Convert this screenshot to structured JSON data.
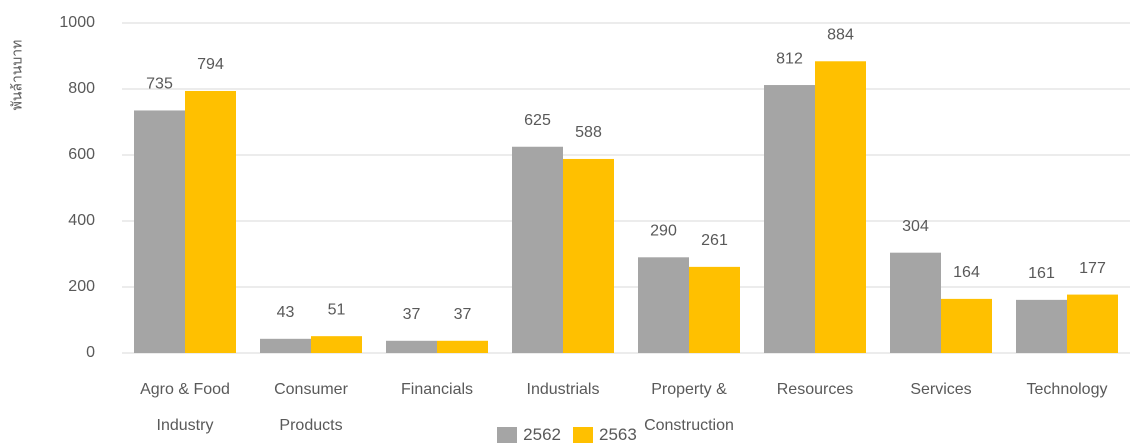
{
  "chart_data": {
    "type": "bar",
    "y_label": "พันล้านบาท",
    "categories": [
      "Agro & Food Industry",
      "Consumer Products",
      "Financials",
      "Industrials",
      "Property & Construction",
      "Resources",
      "Services",
      "Technology"
    ],
    "series": [
      {
        "name": "2562",
        "color": "#a5a5a5",
        "values": [
          735,
          43,
          37,
          625,
          290,
          812,
          304,
          161
        ]
      },
      {
        "name": "2563",
        "color": "#ffc000",
        "values": [
          794,
          51,
          37,
          588,
          261,
          884,
          164,
          177
        ]
      }
    ],
    "ylim": [
      0,
      1000
    ],
    "yticks": [
      0,
      200,
      400,
      600,
      800,
      1000
    ],
    "grid": true,
    "legend": "bottom"
  }
}
